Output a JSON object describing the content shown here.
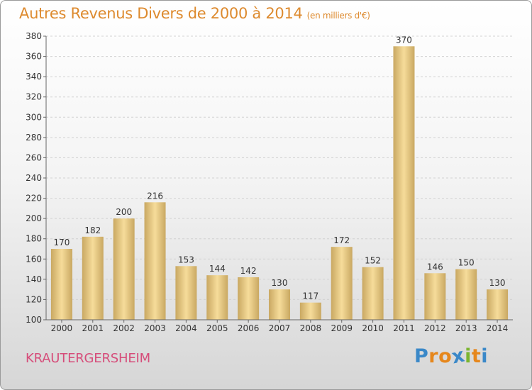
{
  "title": "Autres Revenus Divers de 2000 à 2014",
  "unit_note": "(en milliers d'€)",
  "location": "KRAUTERGERSHEIM",
  "logo": {
    "text": "Proxiti",
    "letter_colors": [
      "#3a88c8",
      "#e6871c",
      "#e6871c",
      "#3a88c8",
      "#7bb52f",
      "#e6871c",
      "#3a88c8"
    ]
  },
  "colors": {
    "bar_light": "#f6dc9a",
    "bar_dark": "#c9a862",
    "title": "#dd8a2e",
    "location": "#d64d7a"
  },
  "chart_data": {
    "type": "bar",
    "title": "Autres Revenus Divers de 2000 à 2014",
    "subtitle": "(en milliers d'€)",
    "categories": [
      "2000",
      "2001",
      "2002",
      "2003",
      "2004",
      "2005",
      "2006",
      "2007",
      "2008",
      "2009",
      "2010",
      "2011",
      "2012",
      "2013",
      "2014"
    ],
    "values": [
      170,
      182,
      200,
      216,
      153,
      144,
      142,
      130,
      117,
      172,
      152,
      370,
      146,
      150,
      130
    ],
    "ylim": [
      100,
      380
    ],
    "yticks": [
      100,
      120,
      140,
      160,
      180,
      200,
      220,
      240,
      260,
      280,
      300,
      320,
      340,
      360,
      380
    ],
    "grid": true,
    "xlabel": "",
    "ylabel": ""
  }
}
